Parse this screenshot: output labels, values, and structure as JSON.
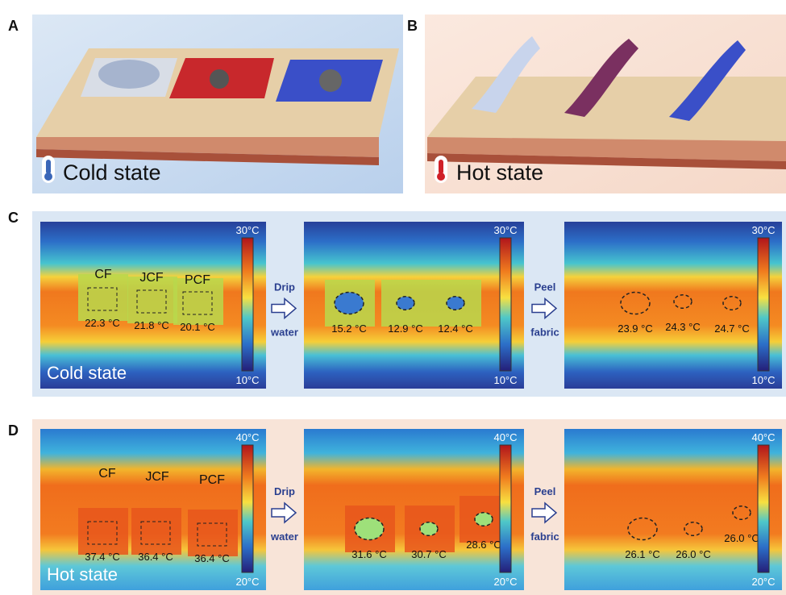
{
  "panels": {
    "a": {
      "label": "A",
      "caption": "Cold state"
    },
    "b": {
      "label": "B",
      "caption": "Hot state"
    },
    "c": {
      "label": "C",
      "caption": "Cold state",
      "samples": [
        "CF",
        "JCF",
        "PCF"
      ],
      "steps": [
        [
          "Drip",
          "water"
        ],
        [
          "Peel",
          "fabric"
        ]
      ],
      "images": [
        {
          "temps": [
            "22.3 °C",
            "21.8 °C",
            "20.1 °C"
          ],
          "scale": [
            "30°C",
            "10°C"
          ]
        },
        {
          "temps": [
            "15.2 °C",
            "12.9 °C",
            "12.4 °C"
          ],
          "scale": [
            "30°C",
            "10°C"
          ]
        },
        {
          "temps": [
            "23.9 °C",
            "24.3 °C",
            "24.7 °C"
          ],
          "scale": [
            "30°C",
            "10°C"
          ]
        }
      ]
    },
    "d": {
      "label": "D",
      "caption": "Hot state",
      "samples": [
        "CF",
        "JCF",
        "PCF"
      ],
      "steps": [
        [
          "Drip",
          "water"
        ],
        [
          "Peel",
          "fabric"
        ]
      ],
      "images": [
        {
          "temps": [
            "37.4 °C",
            "36.4 °C",
            "36.4 °C"
          ],
          "scale": [
            "40°C",
            "20°C"
          ]
        },
        {
          "temps": [
            "31.6 °C",
            "30.7 °C",
            "28.6 °C"
          ],
          "scale": [
            "40°C",
            "20°C"
          ]
        },
        {
          "temps": [
            "26.1 °C",
            "26.0 °C",
            "26.0 °C"
          ],
          "scale": [
            "40°C",
            "20°C"
          ]
        }
      ]
    }
  }
}
